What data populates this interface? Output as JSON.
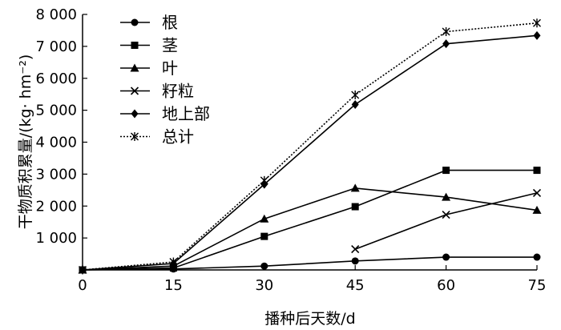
{
  "chart_data": {
    "type": "line",
    "x": [
      0,
      15,
      30,
      45,
      60,
      75
    ],
    "xticks": [
      "0",
      "15",
      "30",
      "45",
      "60",
      "75"
    ],
    "yticks": [
      "0",
      "1 000",
      "2 000",
      "3 000",
      "4 000",
      "5 000",
      "6 000",
      "7 000",
      "8 000"
    ],
    "xlabel": "播种后天数/d",
    "ylabel": "干物质积累量/(kg· hm⁻²)",
    "xlim": [
      0,
      75
    ],
    "ylim": [
      0,
      8000
    ],
    "grid": false,
    "legend_position": "top-left",
    "series": [
      {
        "name": "根",
        "marker": "circle",
        "dash": "solid",
        "values": [
          0,
          30,
          120,
          280,
          400,
          400
        ]
      },
      {
        "name": "茎",
        "marker": "square",
        "dash": "solid",
        "values": [
          0,
          60,
          1050,
          1980,
          3120,
          3120
        ]
      },
      {
        "name": "叶",
        "marker": "triangle",
        "dash": "solid",
        "values": [
          0,
          120,
          1600,
          2560,
          2280,
          1870
        ]
      },
      {
        "name": "籽粒",
        "marker": "x",
        "dash": "solid",
        "values": [
          null,
          null,
          null,
          650,
          1730,
          2410
        ]
      },
      {
        "name": "地上部",
        "marker": "diamond",
        "dash": "solid",
        "values": [
          0,
          200,
          2680,
          5180,
          7080,
          7340
        ]
      },
      {
        "name": "总计",
        "marker": "asterisk",
        "dash": "dotted",
        "values": [
          0,
          250,
          2800,
          5480,
          7460,
          7730
        ]
      }
    ]
  }
}
